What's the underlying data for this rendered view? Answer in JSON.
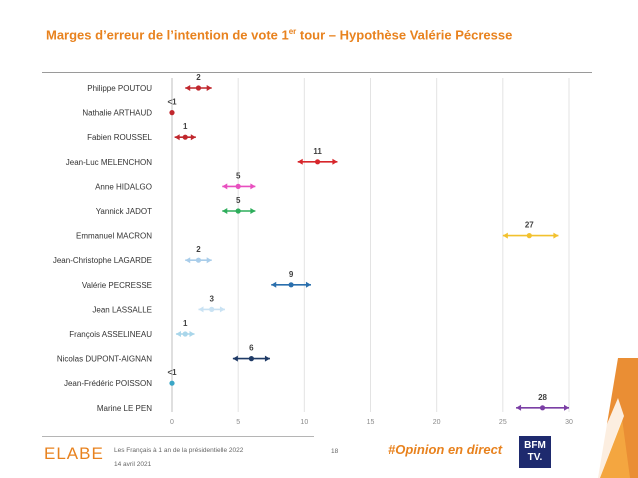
{
  "header": {
    "title_main": "Marges d’erreur de l’intention de vote 1",
    "title_sup": "er",
    "title_rest": " tour – Hypothèse Valérie Pécresse"
  },
  "footer": {
    "logo": "ELABE",
    "source": "Les Français à 1 an de la présidentielle 2022",
    "date": "14 avril 2021",
    "page": "18",
    "hashtag": "#Opinion en direct",
    "partner_top": "BFM",
    "partner_bottom": "TV."
  },
  "chart_data": {
    "type": "errorbar",
    "x_ticks": [
      0,
      5,
      10,
      15,
      20,
      25,
      30
    ],
    "xlim": [
      0,
      30
    ],
    "grid": true,
    "candidates": [
      {
        "name": "Philippe POUTOU",
        "label": "2",
        "value": 2,
        "low": 1,
        "high": 3,
        "color": "#c0272d"
      },
      {
        "name": "Nathalie ARTHAUD",
        "label": "<1",
        "value": 0,
        "low": 0,
        "high": 0,
        "color": "#c0272d"
      },
      {
        "name": "Fabien ROUSSEL",
        "label": "1",
        "value": 1,
        "low": 0.2,
        "high": 1.8,
        "color": "#c0272d"
      },
      {
        "name": "Jean-Luc MELENCHON",
        "label": "11",
        "value": 11,
        "low": 9.5,
        "high": 12.5,
        "color": "#d7262b"
      },
      {
        "name": "Anne HIDALGO",
        "label": "5",
        "value": 5,
        "low": 3.8,
        "high": 6.3,
        "color": "#e84fbf"
      },
      {
        "name": "Yannick JADOT",
        "label": "5",
        "value": 5,
        "low": 3.8,
        "high": 6.3,
        "color": "#2ead5b"
      },
      {
        "name": "Emmanuel MACRON",
        "label": "27",
        "value": 27,
        "low": 25,
        "high": 29.2,
        "color": "#f2c12e"
      },
      {
        "name": "Jean-Christophe LAGARDE",
        "label": "2",
        "value": 2,
        "low": 1,
        "high": 3,
        "color": "#a9cdea"
      },
      {
        "name": "Valérie PECRESSE",
        "label": "9",
        "value": 9,
        "low": 7.5,
        "high": 10.5,
        "color": "#2a6fad"
      },
      {
        "name": "Jean LASSALLE",
        "label": "3",
        "value": 3,
        "low": 2,
        "high": 4,
        "color": "#c9e2f3"
      },
      {
        "name": "François ASSELINEAU",
        "label": "1",
        "value": 1,
        "low": 0.3,
        "high": 1.7,
        "color": "#a9d6ea"
      },
      {
        "name": "Nicolas DUPONT-AIGNAN",
        "label": "6",
        "value": 6,
        "low": 4.6,
        "high": 7.4,
        "color": "#1f3a66"
      },
      {
        "name": "Jean-Frédéric POISSON",
        "label": "<1",
        "value": 0,
        "low": 0,
        "high": 0,
        "color": "#3aa6c6"
      },
      {
        "name": "Marine LE PEN",
        "label": "28",
        "value": 28,
        "low": 26,
        "high": 30,
        "color": "#7b3fa5"
      }
    ]
  }
}
